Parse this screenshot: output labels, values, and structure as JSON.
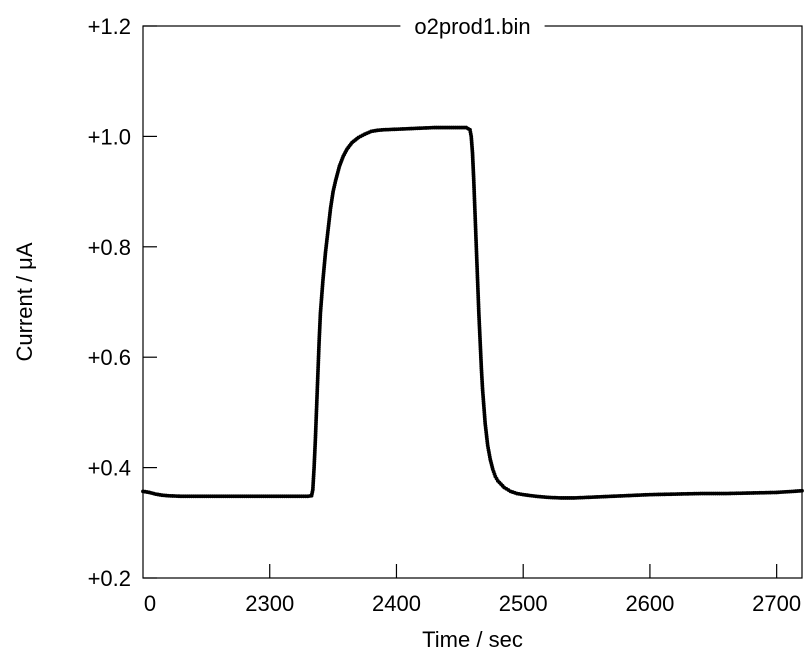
{
  "chart_data": {
    "type": "line",
    "title": "o2prod1.bin",
    "xlabel": "Time / sec",
    "ylabel": "Current / μA",
    "xlim": [
      2200,
      2720
    ],
    "ylim": [
      0.2,
      1.2
    ],
    "x_ticks": [
      2300,
      2400,
      2500,
      2600,
      2700
    ],
    "x_tick_labels": [
      "2300",
      "2400",
      "2500",
      "2600",
      "2700"
    ],
    "x_origin_label": "0",
    "y_ticks": [
      0.2,
      0.4,
      0.6,
      0.8,
      1.0,
      1.2
    ],
    "y_tick_labels": [
      "+0.2",
      "+0.4",
      "+0.6",
      "+0.8",
      "+1.0",
      "+1.2"
    ],
    "grid": false,
    "series": [
      {
        "marker": "dot",
        "color": "#000000",
        "x": [
          2200,
          2205,
          2210,
          2215,
          2220,
          2230,
          2250,
          2270,
          2290,
          2310,
          2320,
          2330,
          2333,
          2334,
          2335,
          2336,
          2337,
          2338,
          2339,
          2340,
          2342,
          2344,
          2346,
          2348,
          2350,
          2352,
          2355,
          2358,
          2361,
          2365,
          2370,
          2375,
          2380,
          2385,
          2390,
          2400,
          2410,
          2420,
          2430,
          2440,
          2450,
          2455,
          2458,
          2459,
          2460,
          2461,
          2462,
          2463,
          2464,
          2465,
          2466,
          2467,
          2468,
          2470,
          2472,
          2474,
          2476,
          2478,
          2480,
          2485,
          2490,
          2495,
          2500,
          2510,
          2520,
          2530,
          2540,
          2550,
          2560,
          2570,
          2580,
          2590,
          2600,
          2620,
          2640,
          2660,
          2680,
          2700,
          2720
        ],
        "y": [
          0.357,
          0.355,
          0.352,
          0.35,
          0.349,
          0.348,
          0.348,
          0.348,
          0.348,
          0.348,
          0.348,
          0.348,
          0.349,
          0.36,
          0.4,
          0.45,
          0.51,
          0.57,
          0.63,
          0.68,
          0.74,
          0.79,
          0.83,
          0.87,
          0.9,
          0.92,
          0.946,
          0.964,
          0.977,
          0.989,
          0.998,
          1.004,
          1.009,
          1.011,
          1.012,
          1.013,
          1.014,
          1.015,
          1.016,
          1.016,
          1.016,
          1.016,
          1.012,
          1.0,
          0.97,
          0.92,
          0.86,
          0.8,
          0.74,
          0.68,
          0.63,
          0.58,
          0.54,
          0.48,
          0.44,
          0.415,
          0.397,
          0.384,
          0.376,
          0.364,
          0.357,
          0.353,
          0.351,
          0.348,
          0.346,
          0.345,
          0.345,
          0.346,
          0.347,
          0.348,
          0.349,
          0.35,
          0.351,
          0.352,
          0.353,
          0.353,
          0.354,
          0.355,
          0.358
        ]
      }
    ]
  }
}
